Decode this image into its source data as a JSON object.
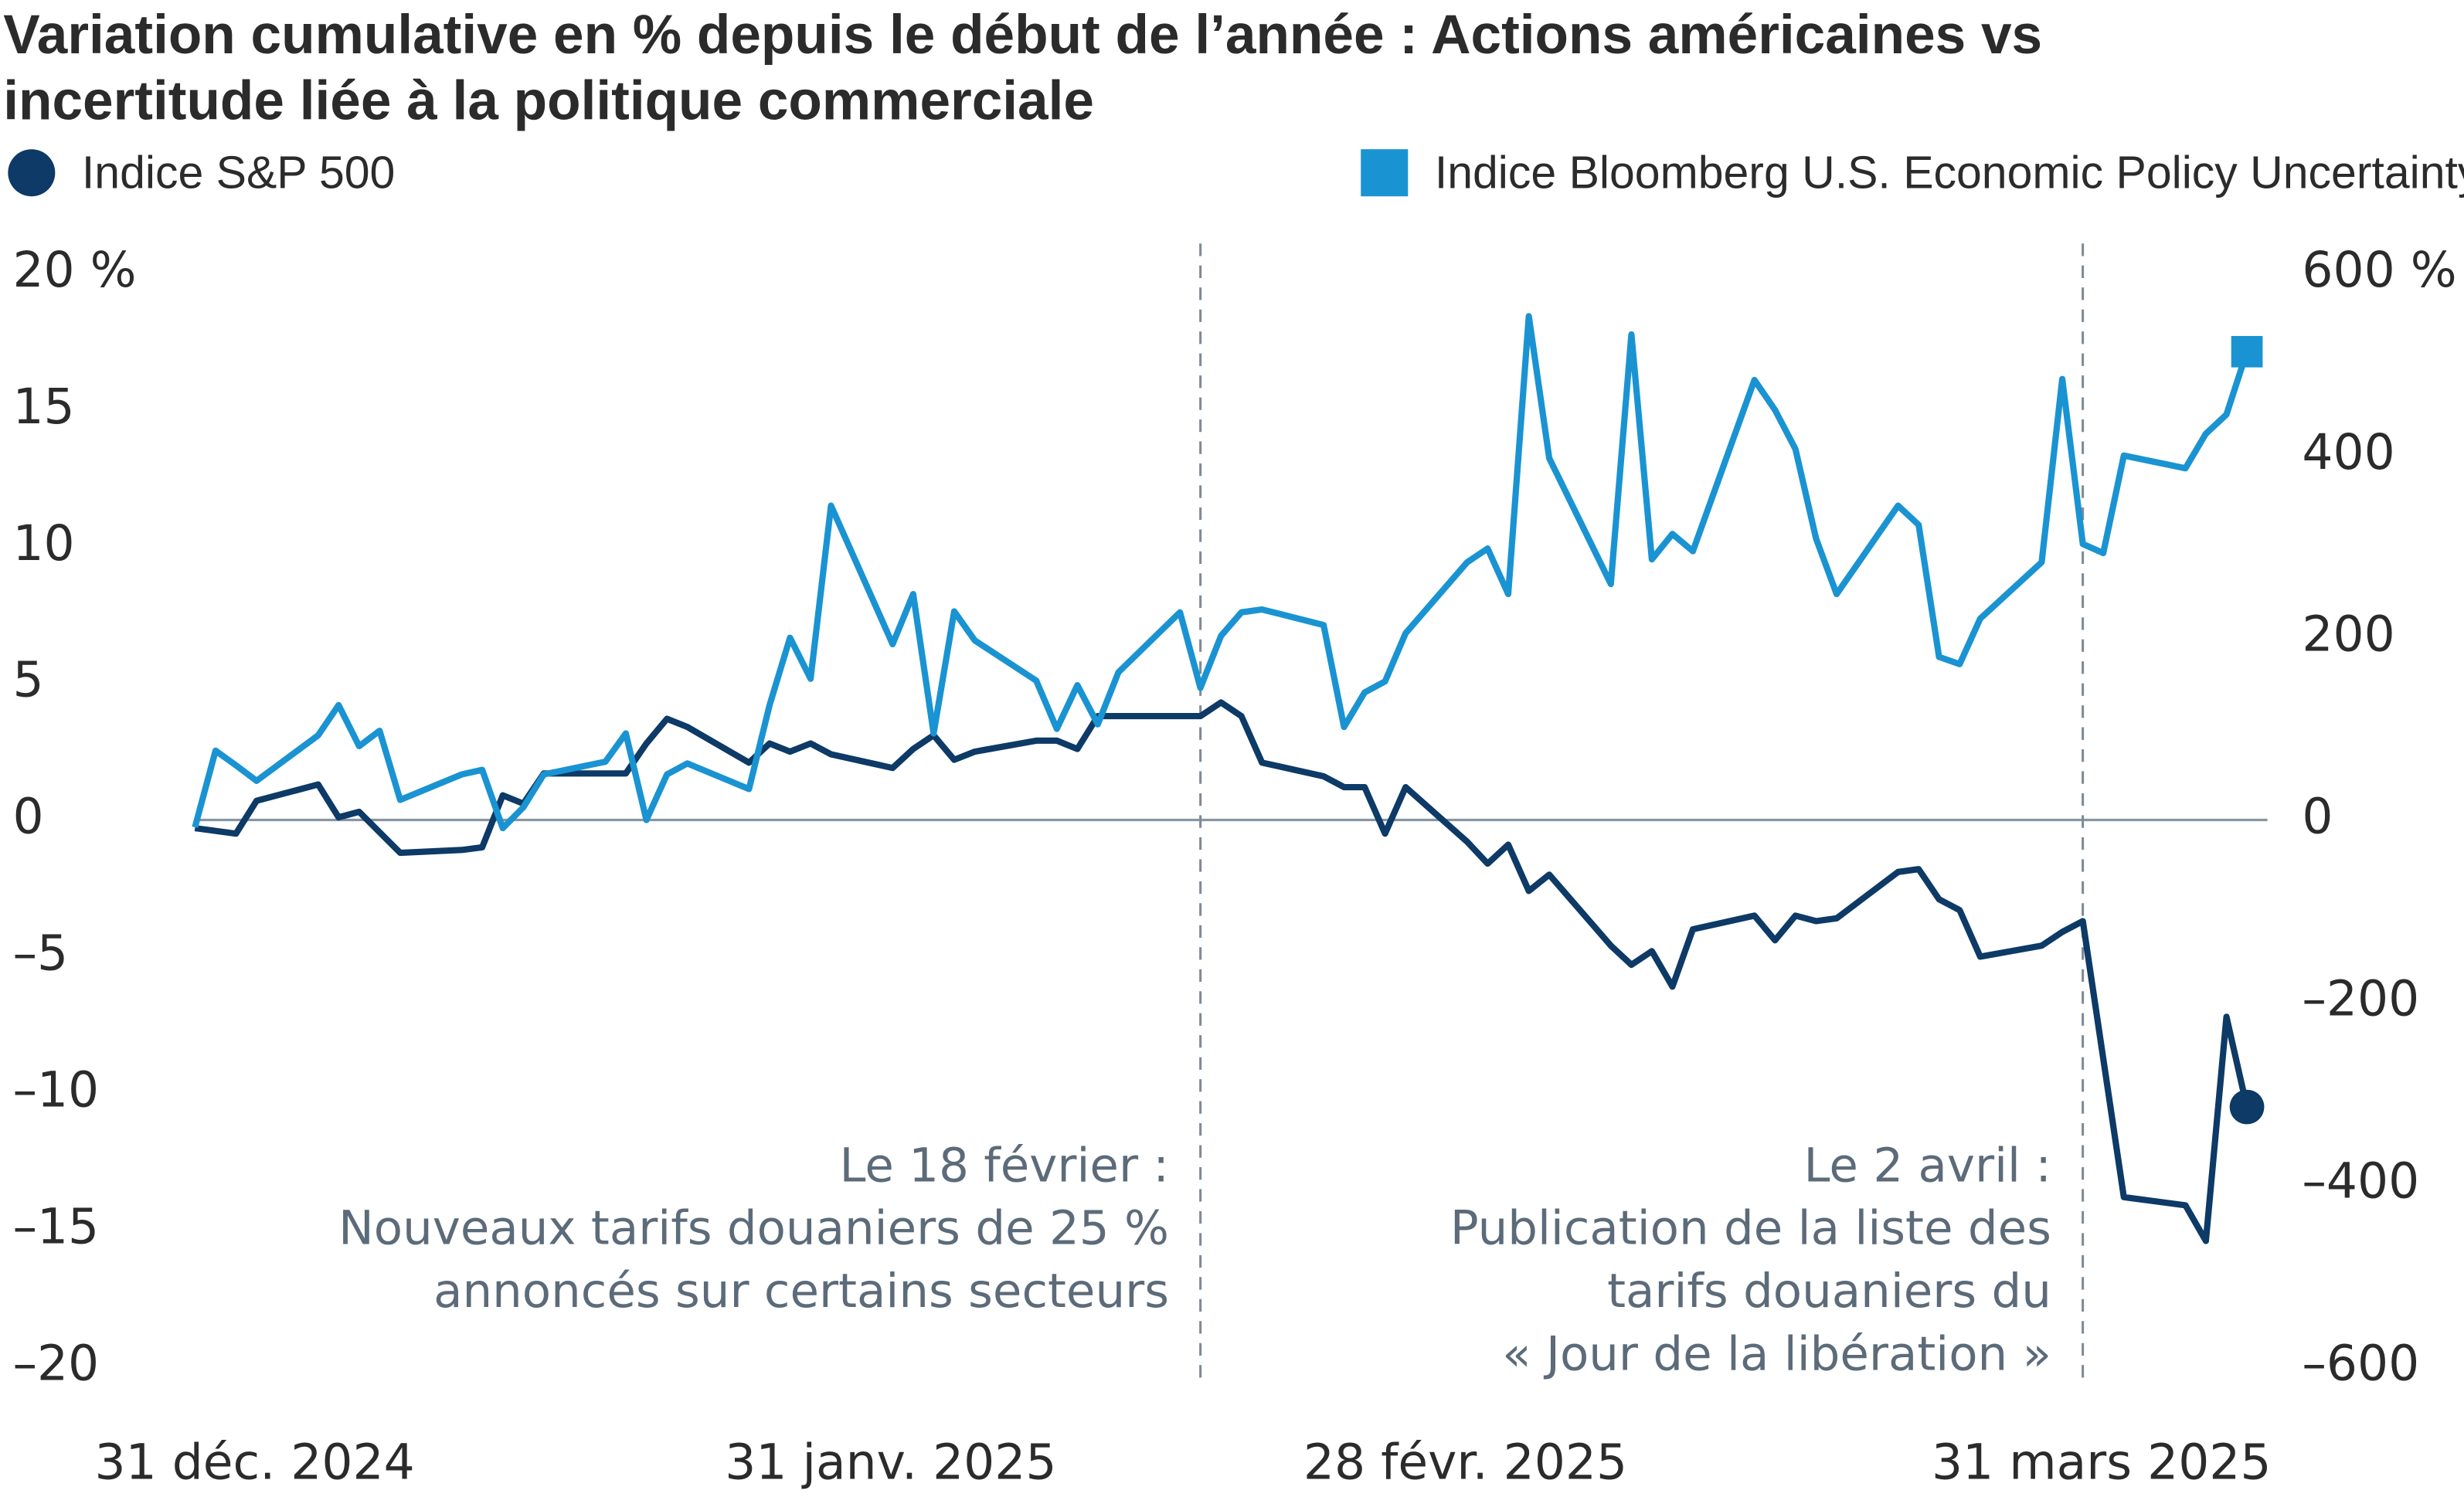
{
  "chart_data": {
    "type": "line",
    "title": [
      "Variation cumulative en % depuis le début de l’année : Actions américaines vs",
      "incertitude liée à la politique commerciale"
    ],
    "xlim": [
      0,
      101
    ],
    "xticks": [
      {
        "value": 0,
        "label": "31 déc. 2024"
      },
      {
        "value": 31,
        "label": "31 janv. 2025"
      },
      {
        "value": 59,
        "label": "28 févr. 2025"
      },
      {
        "value": 90,
        "label": "31 mars 2025"
      }
    ],
    "ylim": [
      -20,
      20
    ],
    "yticks": [
      {
        "value": -20,
        "label": "–20"
      },
      {
        "value": -15,
        "label": "–15"
      },
      {
        "value": -10,
        "label": "–10"
      },
      {
        "value": -5,
        "label": "–5"
      },
      0,
      5,
      10,
      15,
      {
        "value": 20,
        "label": "20 %"
      }
    ],
    "y2lim": [
      -600,
      600
    ],
    "y2ticks": [
      {
        "value": -600,
        "label": "–600"
      },
      {
        "value": -400,
        "label": "–400"
      },
      {
        "value": -200,
        "label": "–200"
      },
      0,
      200,
      400,
      {
        "value": 600,
        "label": "600 %"
      }
    ],
    "zero_line": true,
    "series": [
      {
        "name": "Indice S&P 500",
        "color": "#0d3a66",
        "marker": "circle",
        "axis": "y",
        "x": [
          0,
          2,
          3,
          6,
          7,
          8,
          10,
          13,
          14,
          15,
          16,
          17,
          21,
          22,
          23,
          24,
          27,
          28,
          29,
          30,
          31,
          34,
          35,
          36,
          37,
          38,
          41,
          42,
          43,
          44,
          45,
          49,
          50,
          51,
          52,
          55,
          56,
          57,
          58,
          59,
          62,
          63,
          64,
          65,
          66,
          69,
          70,
          71,
          72,
          73,
          76,
          77,
          78,
          79,
          80,
          83,
          84,
          85,
          86,
          87,
          90,
          91,
          92,
          94,
          97,
          98,
          99,
          100
        ],
        "values": [
          -0.3,
          -0.5,
          0.7,
          1.3,
          0.1,
          0.3,
          -1.2,
          -1.1,
          -1.0,
          0.9,
          0.6,
          1.7,
          1.7,
          2.8,
          3.7,
          3.4,
          2.1,
          2.8,
          2.5,
          2.8,
          2.4,
          1.9,
          2.6,
          3.1,
          2.2,
          2.5,
          2.9,
          2.9,
          2.6,
          3.8,
          3.8,
          3.8,
          4.3,
          3.8,
          2.1,
          1.6,
          1.2,
          1.2,
          -0.5,
          1.2,
          -0.8,
          -1.6,
          -0.9,
          -2.6,
          -2.0,
          -4.6,
          -5.3,
          -4.8,
          -6.1,
          -4.0,
          -3.5,
          -4.4,
          -3.5,
          -3.7,
          -3.6,
          -1.9,
          -1.8,
          -2.9,
          -3.3,
          -5.0,
          -4.6,
          -4.1,
          -3.7,
          -13.8,
          -14.1,
          -15.4,
          -7.2,
          -10.5
        ]
      },
      {
        "name": "Indice Bloomberg U.S. Economic Policy Uncertainty",
        "color": "#1a93d2",
        "marker": "square",
        "axis": "y2",
        "x": [
          0,
          1,
          2,
          3,
          6,
          7,
          8,
          9,
          10,
          13,
          14,
          15,
          16,
          17,
          20,
          21,
          22,
          23,
          24,
          27,
          28,
          29,
          30,
          31,
          34,
          35,
          36,
          37,
          38,
          41,
          42,
          43,
          44,
          45,
          48,
          49,
          50,
          51,
          52,
          55,
          56,
          57,
          58,
          59,
          62,
          63,
          64,
          65,
          66,
          69,
          70,
          71,
          72,
          73,
          76,
          77,
          78,
          79,
          80,
          83,
          84,
          85,
          86,
          87,
          90,
          91,
          92,
          93,
          94,
          97,
          98,
          99,
          100
        ],
        "values": [
          -8,
          76,
          60,
          43,
          93,
          126,
          81,
          98,
          22,
          50,
          55,
          -9,
          14,
          50,
          64,
          95,
          0,
          50,
          62,
          34,
          126,
          200,
          155,
          345,
          193,
          248,
          95,
          229,
          197,
          153,
          100,
          148,
          105,
          162,
          228,
          145,
          202,
          228,
          231,
          214,
          102,
          140,
          152,
          205,
          283,
          298,
          248,
          553,
          397,
          259,
          533,
          286,
          314,
          295,
          483,
          450,
          407,
          309,
          248,
          345,
          324,
          179,
          171,
          221,
          283,
          484,
          303,
          293,
          400,
          386,
          424,
          445,
          514
        ]
      }
    ],
    "annotations": [
      {
        "x": 49,
        "text": [
          "Le 18 février :",
          "Nouveaux tarifs douaniers de 25 %",
          "annoncés sur certains secteurs"
        ]
      },
      {
        "x": 92,
        "text": [
          "Le 2 avril :",
          "Publication de la liste des",
          "tarifs douaniers du",
          "« Jour de la libération »"
        ]
      }
    ]
  }
}
